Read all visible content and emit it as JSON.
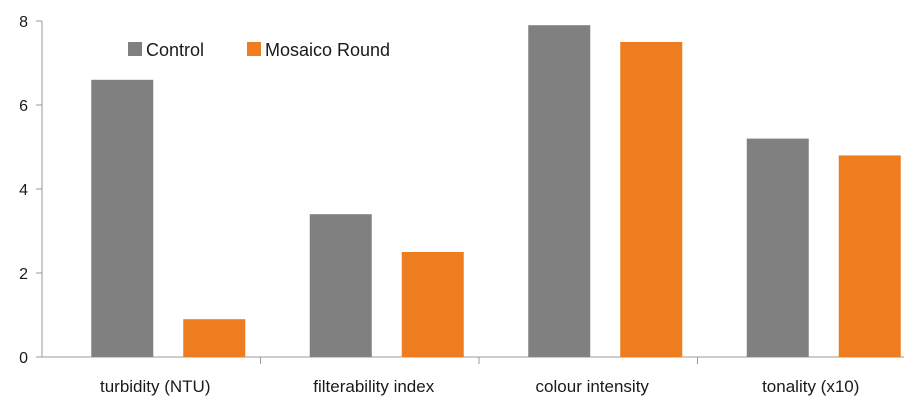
{
  "chart_data": {
    "type": "bar",
    "categories": [
      "turbidity (NTU)",
      "filterability index",
      "colour intensity",
      "tonality (x10)"
    ],
    "series": [
      {
        "name": "Control",
        "color": "#808080",
        "values": [
          6.6,
          3.4,
          7.9,
          5.2
        ]
      },
      {
        "name": "Mosaico Round",
        "color": "#ed7d1f",
        "values": [
          0.9,
          2.5,
          7.5,
          4.8
        ]
      }
    ],
    "ylim": [
      0,
      8
    ],
    "yticks": [
      "0",
      "2",
      "4",
      "6",
      "8"
    ],
    "grid": false,
    "legend_position": "top-left",
    "title": "",
    "xlabel": "",
    "ylabel": ""
  }
}
